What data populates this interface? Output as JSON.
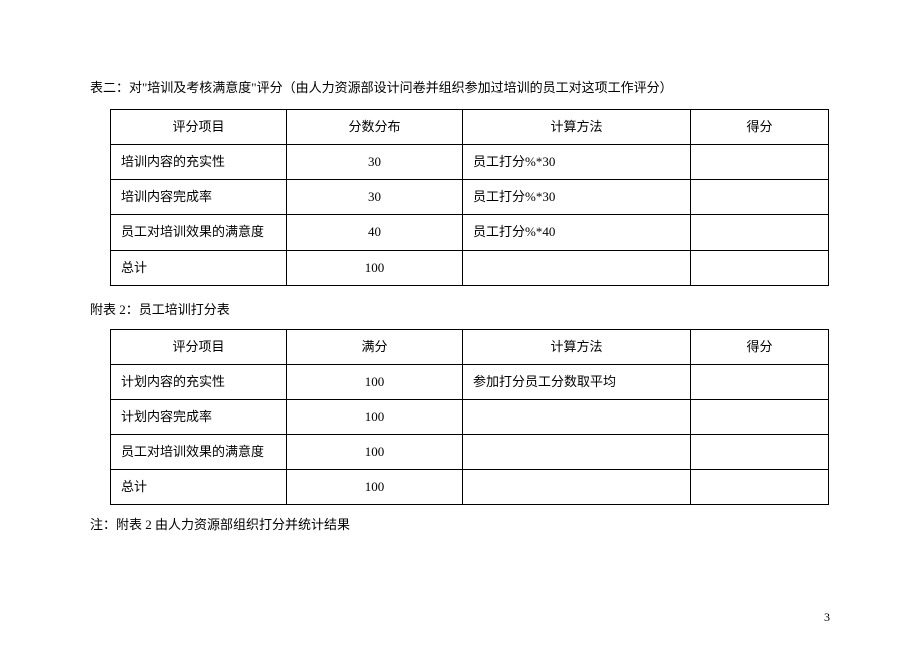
{
  "heading1": "表二：对\"培训及考核满意度\"评分（由人力资源部设计问卷并组织参加过培训的员工对这项工作评分）",
  "table1": {
    "headers": [
      "评分项目",
      "分数分布",
      "计算方法",
      "得分"
    ],
    "rows": [
      {
        "c1": "培训内容的充实性",
        "c2": "30",
        "c3": "员工打分%*30",
        "c4": ""
      },
      {
        "c1": "培训内容完成率",
        "c2": "30",
        "c3": "员工打分%*30",
        "c4": ""
      },
      {
        "c1": "员工对培训效果的满意度",
        "c2": "40",
        "c3": "员工打分%*40",
        "c4": ""
      },
      {
        "c1": "总计",
        "c2": "100",
        "c3": "",
        "c4": ""
      }
    ]
  },
  "heading2": "附表 2：员工培训打分表",
  "table2": {
    "headers": [
      "评分项目",
      "满分",
      "计算方法",
      "得分"
    ],
    "rows": [
      {
        "c1": "计划内容的充实性",
        "c2": "100",
        "c3": "参加打分员工分数取平均",
        "c4": ""
      },
      {
        "c1": "计划内容完成率",
        "c2": "100",
        "c3": "",
        "c4": ""
      },
      {
        "c1": "员工对培训效果的满意度",
        "c2": "100",
        "c3": "",
        "c4": ""
      },
      {
        "c1": "总计",
        "c2": "100",
        "c3": "",
        "c4": ""
      }
    ]
  },
  "note": "注：附表 2 由人力资源部组织打分并统计结果",
  "page_number": "3"
}
